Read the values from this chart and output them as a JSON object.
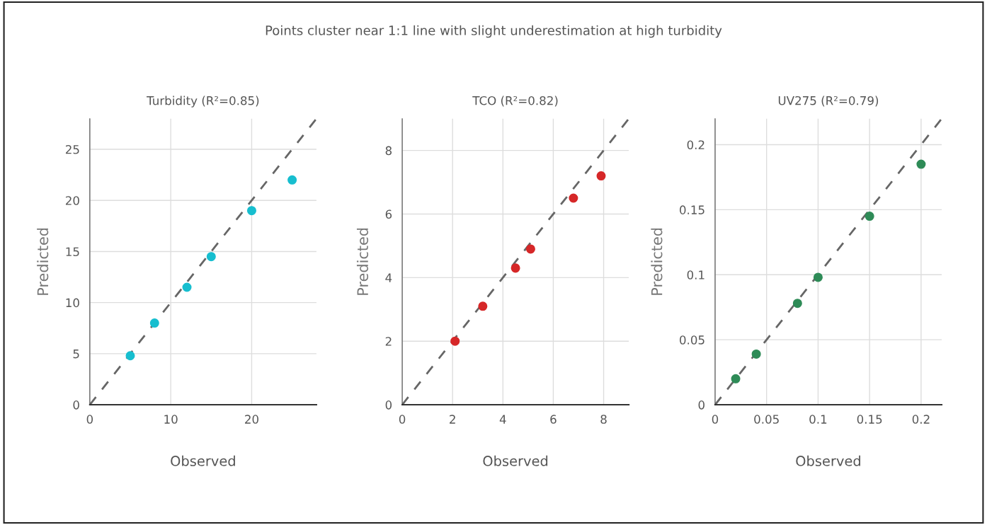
{
  "chart_data": [
    {
      "type": "scatter",
      "title": "Turbidity (R²=0.85)",
      "xlabel": "Observed",
      "ylabel": "Predicted",
      "annotations": [
        "Points cluster near 1:1 line with slight underestimation at high turbidity"
      ],
      "xlim": [
        0,
        28
      ],
      "ylim": [
        0,
        28
      ],
      "xticks": [
        0,
        10,
        20
      ],
      "yticks": [
        0,
        5,
        10,
        15,
        20,
        25
      ],
      "grid": true,
      "marker": "circle",
      "series": [
        {
          "color": "#17becf",
          "x": [
            5,
            8,
            12,
            15,
            20,
            25
          ],
          "values": [
            4.8,
            8,
            11.5,
            14.5,
            19,
            22
          ]
        },
        {
          "type": "line",
          "color": "#666666",
          "line_style": "dashed",
          "marker": "none",
          "x": [
            0,
            28
          ],
          "values": [
            0,
            28
          ]
        }
      ]
    },
    {
      "type": "scatter",
      "title": "TCO (R²=0.82)",
      "xlabel": "Observed",
      "ylabel": "Predicted",
      "xlim": [
        0,
        9
      ],
      "ylim": [
        0,
        9
      ],
      "xticks": [
        0,
        2,
        4,
        6,
        8
      ],
      "yticks": [
        0,
        2,
        4,
        6,
        8
      ],
      "grid": true,
      "marker": "circle",
      "series": [
        {
          "color": "#d62728",
          "x": [
            2.1,
            3.2,
            4.5,
            5.1,
            6.8,
            7.9
          ],
          "values": [
            2.0,
            3.1,
            4.3,
            4.9,
            6.5,
            7.2
          ]
        },
        {
          "type": "line",
          "color": "#666666",
          "line_style": "dashed",
          "marker": "none",
          "x": [
            0,
            9
          ],
          "values": [
            0,
            9
          ]
        }
      ]
    },
    {
      "type": "scatter",
      "title": "UV275 (R²=0.79)",
      "xlabel": "Observed",
      "ylabel": "Predicted",
      "xlim": [
        0,
        0.22
      ],
      "ylim": [
        0,
        0.22
      ],
      "xticks": [
        0,
        0.05,
        0.1,
        0.15,
        0.2
      ],
      "yticks": [
        0,
        0.05,
        0.1,
        0.15,
        0.2
      ],
      "grid": true,
      "marker": "circle",
      "series": [
        {
          "color": "#2e8b57",
          "x": [
            0.02,
            0.04,
            0.08,
            0.1,
            0.15,
            0.2
          ],
          "values": [
            0.02,
            0.039,
            0.078,
            0.098,
            0.145,
            0.185
          ]
        },
        {
          "type": "line",
          "color": "#666666",
          "line_style": "dashed",
          "marker": "none",
          "x": [
            0,
            0.22
          ],
          "values": [
            0,
            0.22
          ]
        }
      ]
    }
  ]
}
